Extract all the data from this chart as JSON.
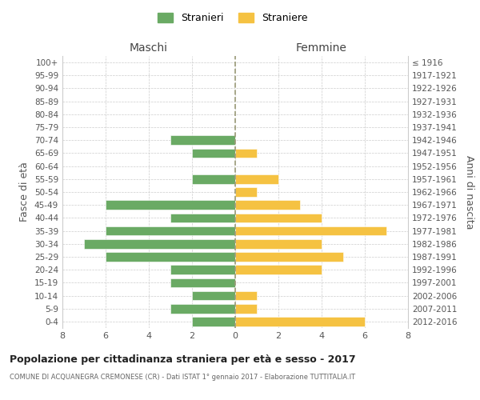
{
  "age_groups": [
    "0-4",
    "5-9",
    "10-14",
    "15-19",
    "20-24",
    "25-29",
    "30-34",
    "35-39",
    "40-44",
    "45-49",
    "50-54",
    "55-59",
    "60-64",
    "65-69",
    "70-74",
    "75-79",
    "80-84",
    "85-89",
    "90-94",
    "95-99",
    "100+"
  ],
  "birth_years": [
    "2012-2016",
    "2007-2011",
    "2002-2006",
    "1997-2001",
    "1992-1996",
    "1987-1991",
    "1982-1986",
    "1977-1981",
    "1972-1976",
    "1967-1971",
    "1962-1966",
    "1957-1961",
    "1952-1956",
    "1947-1951",
    "1942-1946",
    "1937-1941",
    "1932-1936",
    "1927-1931",
    "1922-1926",
    "1917-1921",
    "≤ 1916"
  ],
  "males": [
    2,
    3,
    2,
    3,
    3,
    6,
    7,
    6,
    3,
    6,
    0,
    2,
    0,
    2,
    3,
    0,
    0,
    0,
    0,
    0,
    0
  ],
  "females": [
    6,
    1,
    1,
    0,
    4,
    5,
    4,
    7,
    4,
    3,
    1,
    2,
    0,
    1,
    0,
    0,
    0,
    0,
    0,
    0,
    0
  ],
  "male_color": "#6aaa64",
  "female_color": "#f5c242",
  "title": "Popolazione per cittadinanza straniera per età e sesso - 2017",
  "subtitle": "COMUNE DI ACQUANEGRA CREMONESE (CR) - Dati ISTAT 1° gennaio 2017 - Elaborazione TUTTITALIA.IT",
  "xlabel_left": "Maschi",
  "xlabel_right": "Femmine",
  "ylabel_left": "Fasce di età",
  "ylabel_right": "Anni di nascita",
  "legend_male": "Stranieri",
  "legend_female": "Straniere",
  "xlim": 8,
  "background_color": "#ffffff",
  "grid_color": "#cccccc"
}
